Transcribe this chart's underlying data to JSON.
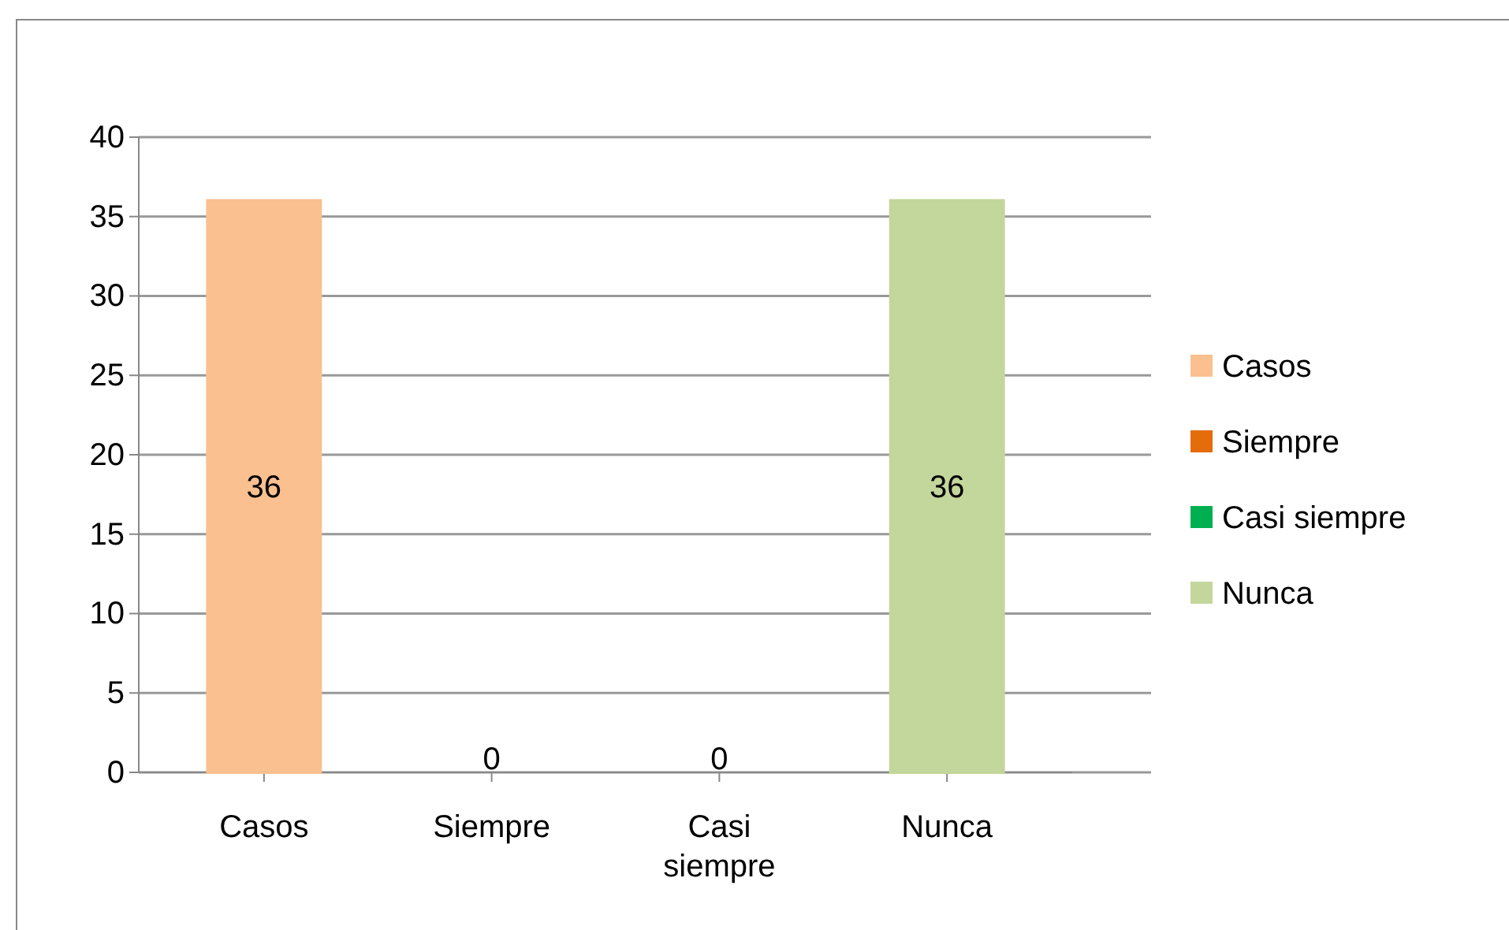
{
  "chart_data": {
    "type": "bar",
    "categories": [
      "Casos",
      "Siempre",
      "Casi siempre",
      "Nunca"
    ],
    "series": [
      {
        "name": "Casos",
        "color": "#fac090",
        "values": [
          36,
          null,
          null,
          null
        ]
      },
      {
        "name": "Siempre",
        "color": "#e46c0a",
        "values": [
          null,
          0,
          null,
          null
        ]
      },
      {
        "name": "Casi siempre",
        "color": "#00b050",
        "values": [
          null,
          null,
          0,
          null
        ]
      },
      {
        "name": "Nunca",
        "color": "#c3d69b",
        "values": [
          null,
          null,
          null,
          36
        ]
      }
    ],
    "ylim": [
      0,
      40
    ],
    "yticks": [
      0,
      5,
      10,
      15,
      20,
      25,
      30,
      35,
      40
    ],
    "grid": "y",
    "legend": "right",
    "data_labels": true
  }
}
